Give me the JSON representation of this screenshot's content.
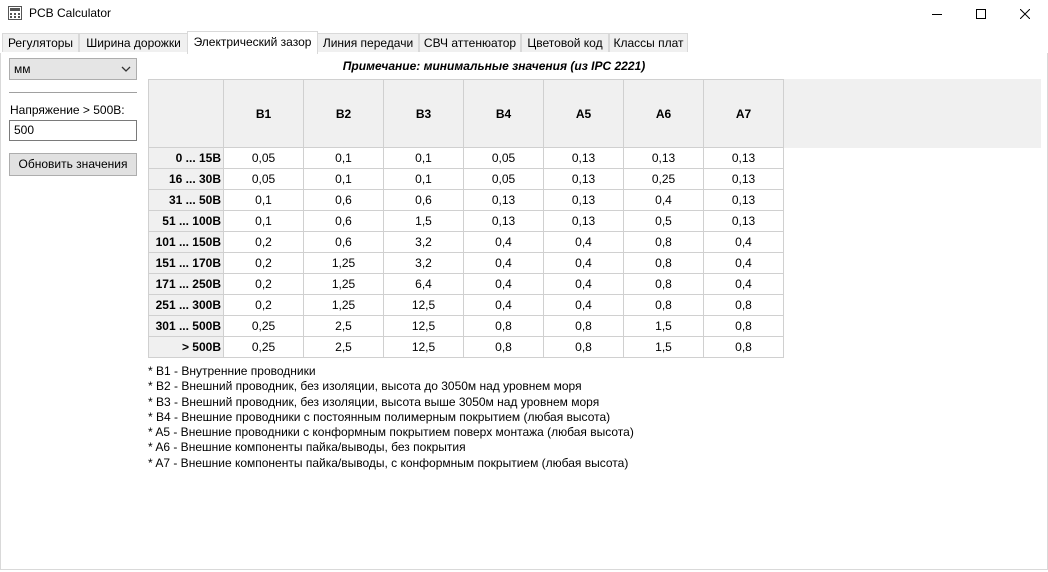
{
  "window": {
    "title": "PCB Calculator"
  },
  "tabs": [
    {
      "label": "Регуляторы"
    },
    {
      "label": "Ширина дорожки"
    },
    {
      "label": "Электрический зазор"
    },
    {
      "label": "Линия передачи"
    },
    {
      "label": "СВЧ аттенюатор"
    },
    {
      "label": "Цветовой код"
    },
    {
      "label": "Классы плат"
    }
  ],
  "active_tab": "Электрический зазор",
  "sidebar": {
    "unit_selected": "мм",
    "voltage_label": "Напряжение > 500В:",
    "voltage_value": "500",
    "update_button": "Обновить значения"
  },
  "note": "Примечание: минимальные значения (из IPC 2221)",
  "table": {
    "columns": [
      "B1",
      "B2",
      "B3",
      "B4",
      "A5",
      "A6",
      "A7"
    ],
    "rows": [
      {
        "range": "0 ... 15В",
        "values": [
          "0,05",
          "0,1",
          "0,1",
          "0,05",
          "0,13",
          "0,13",
          "0,13"
        ]
      },
      {
        "range": "16 ... 30В",
        "values": [
          "0,05",
          "0,1",
          "0,1",
          "0,05",
          "0,13",
          "0,25",
          "0,13"
        ]
      },
      {
        "range": "31 ... 50В",
        "values": [
          "0,1",
          "0,6",
          "0,6",
          "0,13",
          "0,13",
          "0,4",
          "0,13"
        ]
      },
      {
        "range": "51 ... 100В",
        "values": [
          "0,1",
          "0,6",
          "1,5",
          "0,13",
          "0,13",
          "0,5",
          "0,13"
        ]
      },
      {
        "range": "101 ... 150В",
        "values": [
          "0,2",
          "0,6",
          "3,2",
          "0,4",
          "0,4",
          "0,8",
          "0,4"
        ]
      },
      {
        "range": "151 ... 170В",
        "values": [
          "0,2",
          "1,25",
          "3,2",
          "0,4",
          "0,4",
          "0,8",
          "0,4"
        ]
      },
      {
        "range": "171 ... 250В",
        "values": [
          "0,2",
          "1,25",
          "6,4",
          "0,4",
          "0,4",
          "0,8",
          "0,4"
        ]
      },
      {
        "range": "251 ... 300В",
        "values": [
          "0,2",
          "1,25",
          "12,5",
          "0,4",
          "0,4",
          "0,8",
          "0,8"
        ]
      },
      {
        "range": "301 ... 500В",
        "values": [
          "0,25",
          "2,5",
          "12,5",
          "0,8",
          "0,8",
          "1,5",
          "0,8"
        ]
      },
      {
        "range": "> 500В",
        "values": [
          "0,25",
          "2,5",
          "12,5",
          "0,8",
          "0,8",
          "1,5",
          "0,8"
        ]
      }
    ]
  },
  "legend": [
    "*  B1 - Внутренние проводники",
    "*  B2 - Внешний проводник, без изоляции, высота до 3050м над уровнем моря",
    "*  B3 - Внешний проводник, без изоляции, высота выше 3050м над уровнем моря",
    "*  B4 - Внешние проводники с постоянным полимерным покрытием (любая высота)",
    "*  A5 - Внешние проводники с конформным покрытием поверх монтажа (любая высота)",
    "*  A6 - Внешние компоненты пайка/выводы, без покрытия",
    "*  A7 - Внешние компоненты пайка/выводы, с конформным покрытием (любая высота)"
  ],
  "icons": {
    "app": "pcb-calculator-icon",
    "minimize": "minimize-icon",
    "maximize": "maximize-icon",
    "close": "close-icon",
    "dropdown": "chevron-down-icon"
  }
}
